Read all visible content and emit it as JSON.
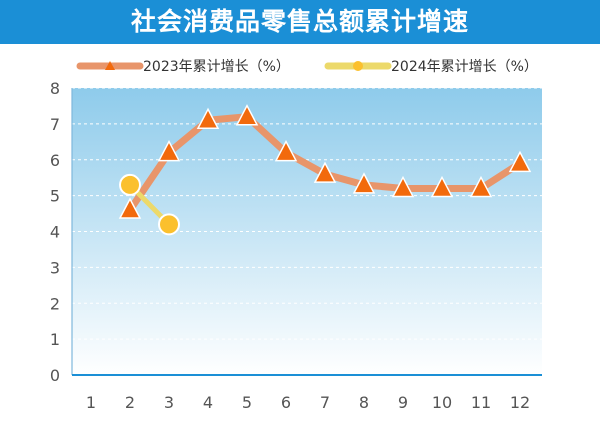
{
  "chart_data": {
    "type": "line",
    "title": "社会消费品零售总额累计增速",
    "x": [
      1,
      2,
      3,
      4,
      5,
      6,
      7,
      8,
      9,
      10,
      11,
      12
    ],
    "xticks": [
      "1",
      "2",
      "3",
      "4",
      "5",
      "6",
      "7",
      "8",
      "9",
      "10",
      "11",
      "12"
    ],
    "yticks": [
      "0",
      "1",
      "2",
      "3",
      "4",
      "5",
      "6",
      "7",
      "8"
    ],
    "ylim": [
      0,
      8
    ],
    "grid": true,
    "legend_position": "top",
    "series": [
      {
        "name": "2023年累计增长（%）",
        "line_color": "#e8956a",
        "marker": "triangle",
        "marker_color": "#f26a0c",
        "values": [
          null,
          4.6,
          6.2,
          7.1,
          7.2,
          6.2,
          5.6,
          5.3,
          5.2,
          5.2,
          5.2,
          5.9
        ]
      },
      {
        "name": "2024年累计增长（%）",
        "line_color": "#ecd96a",
        "marker": "circle",
        "marker_color": "#fbc02d",
        "values": [
          null,
          5.3,
          4.2,
          null,
          null,
          null,
          null,
          null,
          null,
          null,
          null,
          null
        ]
      }
    ]
  }
}
